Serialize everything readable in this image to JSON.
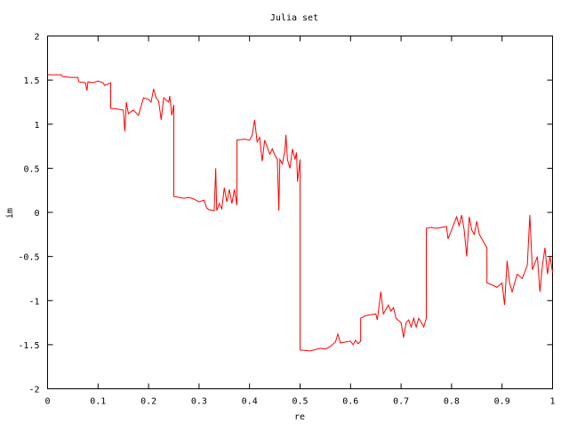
{
  "chart_data": {
    "type": "line",
    "title": "Julia set",
    "xlabel": "re",
    "ylabel": "im",
    "xlim": [
      0,
      1
    ],
    "ylim": [
      -2,
      2
    ],
    "x_ticks": [
      "0",
      "0.1",
      "0.2",
      "0.3",
      "0.4",
      "0.5",
      "0.6",
      "0.7",
      "0.8",
      "0.9",
      "1"
    ],
    "y_ticks": [
      "2",
      "1.5",
      "1",
      "0.5",
      "0",
      "-0.5",
      "-1",
      "-1.5",
      "-2"
    ],
    "grid": false,
    "series": [
      {
        "color": "#ff0000",
        "points": [
          [
            0.0,
            1.56
          ],
          [
            0.027,
            1.56
          ],
          [
            0.03,
            1.54
          ],
          [
            0.045,
            1.53
          ],
          [
            0.06,
            1.53
          ],
          [
            0.062,
            1.48
          ],
          [
            0.075,
            1.47
          ],
          [
            0.078,
            1.38
          ],
          [
            0.08,
            1.48
          ],
          [
            0.09,
            1.47
          ],
          [
            0.1,
            1.49
          ],
          [
            0.11,
            1.47
          ],
          [
            0.113,
            1.44
          ],
          [
            0.125,
            1.47
          ],
          [
            0.125,
            1.18
          ],
          [
            0.14,
            1.17
          ],
          [
            0.15,
            1.16
          ],
          [
            0.153,
            0.92
          ],
          [
            0.156,
            1.25
          ],
          [
            0.16,
            1.12
          ],
          [
            0.17,
            1.16
          ],
          [
            0.18,
            1.1
          ],
          [
            0.185,
            1.2
          ],
          [
            0.19,
            1.3
          ],
          [
            0.2,
            1.28
          ],
          [
            0.205,
            1.25
          ],
          [
            0.21,
            1.4
          ],
          [
            0.215,
            1.3
          ],
          [
            0.22,
            1.26
          ],
          [
            0.225,
            1.05
          ],
          [
            0.23,
            1.3
          ],
          [
            0.24,
            1.25
          ],
          [
            0.242,
            1.32
          ],
          [
            0.246,
            1.1
          ],
          [
            0.25,
            1.22
          ],
          [
            0.25,
            0.18
          ],
          [
            0.27,
            0.16
          ],
          [
            0.28,
            0.17
          ],
          [
            0.29,
            0.15
          ],
          [
            0.3,
            0.12
          ],
          [
            0.31,
            0.14
          ],
          [
            0.315,
            0.05
          ],
          [
            0.32,
            0.03
          ],
          [
            0.33,
            0.02
          ],
          [
            0.333,
            0.5
          ],
          [
            0.335,
            0.02
          ],
          [
            0.34,
            0.1
          ],
          [
            0.345,
            0.04
          ],
          [
            0.35,
            0.28
          ],
          [
            0.355,
            0.12
          ],
          [
            0.36,
            0.26
          ],
          [
            0.365,
            0.1
          ],
          [
            0.37,
            0.26
          ],
          [
            0.375,
            0.08
          ],
          [
            0.375,
            0.82
          ],
          [
            0.39,
            0.83
          ],
          [
            0.4,
            0.82
          ],
          [
            0.405,
            0.87
          ],
          [
            0.41,
            1.05
          ],
          [
            0.415,
            0.8
          ],
          [
            0.42,
            0.85
          ],
          [
            0.425,
            0.58
          ],
          [
            0.43,
            0.82
          ],
          [
            0.44,
            0.66
          ],
          [
            0.445,
            0.72
          ],
          [
            0.45,
            0.65
          ],
          [
            0.455,
            0.6
          ],
          [
            0.458,
            0.02
          ],
          [
            0.46,
            0.6
          ],
          [
            0.465,
            0.55
          ],
          [
            0.47,
            0.7
          ],
          [
            0.472,
            0.88
          ],
          [
            0.475,
            0.6
          ],
          [
            0.48,
            0.5
          ],
          [
            0.485,
            0.72
          ],
          [
            0.49,
            0.6
          ],
          [
            0.493,
            0.68
          ],
          [
            0.495,
            0.35
          ],
          [
            0.5,
            0.6
          ],
          [
            0.5,
            -1.56
          ],
          [
            0.52,
            -1.57
          ],
          [
            0.54,
            -1.54
          ],
          [
            0.55,
            -1.55
          ],
          [
            0.56,
            -1.52
          ],
          [
            0.57,
            -1.47
          ],
          [
            0.575,
            -1.38
          ],
          [
            0.58,
            -1.48
          ],
          [
            0.59,
            -1.47
          ],
          [
            0.6,
            -1.46
          ],
          [
            0.605,
            -1.5
          ],
          [
            0.61,
            -1.45
          ],
          [
            0.615,
            -1.49
          ],
          [
            0.62,
            -1.46
          ],
          [
            0.62,
            -1.2
          ],
          [
            0.63,
            -1.17
          ],
          [
            0.64,
            -1.16
          ],
          [
            0.65,
            -1.15
          ],
          [
            0.653,
            -1.22
          ],
          [
            0.66,
            -0.9
          ],
          [
            0.665,
            -1.15
          ],
          [
            0.67,
            -1.1
          ],
          [
            0.675,
            -1.05
          ],
          [
            0.68,
            -1.12
          ],
          [
            0.685,
            -1.08
          ],
          [
            0.69,
            -1.2
          ],
          [
            0.7,
            -1.25
          ],
          [
            0.705,
            -1.42
          ],
          [
            0.71,
            -1.25
          ],
          [
            0.715,
            -1.22
          ],
          [
            0.72,
            -1.3
          ],
          [
            0.725,
            -1.2
          ],
          [
            0.73,
            -1.3
          ],
          [
            0.735,
            -1.2
          ],
          [
            0.74,
            -1.25
          ],
          [
            0.745,
            -1.3
          ],
          [
            0.75,
            -1.2
          ],
          [
            0.75,
            -0.18
          ],
          [
            0.76,
            -0.17
          ],
          [
            0.77,
            -0.18
          ],
          [
            0.78,
            -0.17
          ],
          [
            0.79,
            -0.16
          ],
          [
            0.793,
            -0.3
          ],
          [
            0.8,
            -0.2
          ],
          [
            0.81,
            -0.05
          ],
          [
            0.815,
            -0.15
          ],
          [
            0.82,
            -0.03
          ],
          [
            0.825,
            -0.2
          ],
          [
            0.83,
            -0.5
          ],
          [
            0.835,
            -0.05
          ],
          [
            0.84,
            -0.2
          ],
          [
            0.845,
            -0.25
          ],
          [
            0.85,
            -0.1
          ],
          [
            0.855,
            -0.25
          ],
          [
            0.86,
            -0.3
          ],
          [
            0.87,
            -0.4
          ],
          [
            0.87,
            -0.8
          ],
          [
            0.88,
            -0.82
          ],
          [
            0.89,
            -0.85
          ],
          [
            0.9,
            -0.8
          ],
          [
            0.905,
            -1.05
          ],
          [
            0.91,
            -0.55
          ],
          [
            0.915,
            -0.8
          ],
          [
            0.92,
            -0.9
          ],
          [
            0.93,
            -0.7
          ],
          [
            0.94,
            -0.75
          ],
          [
            0.95,
            -0.6
          ],
          [
            0.955,
            -0.03
          ],
          [
            0.96,
            -0.65
          ],
          [
            0.97,
            -0.5
          ],
          [
            0.975,
            -0.9
          ],
          [
            0.98,
            -0.6
          ],
          [
            0.985,
            -0.4
          ],
          [
            0.99,
            -0.7
          ],
          [
            0.995,
            -0.5
          ],
          [
            1.0,
            -0.68
          ]
        ]
      }
    ]
  }
}
